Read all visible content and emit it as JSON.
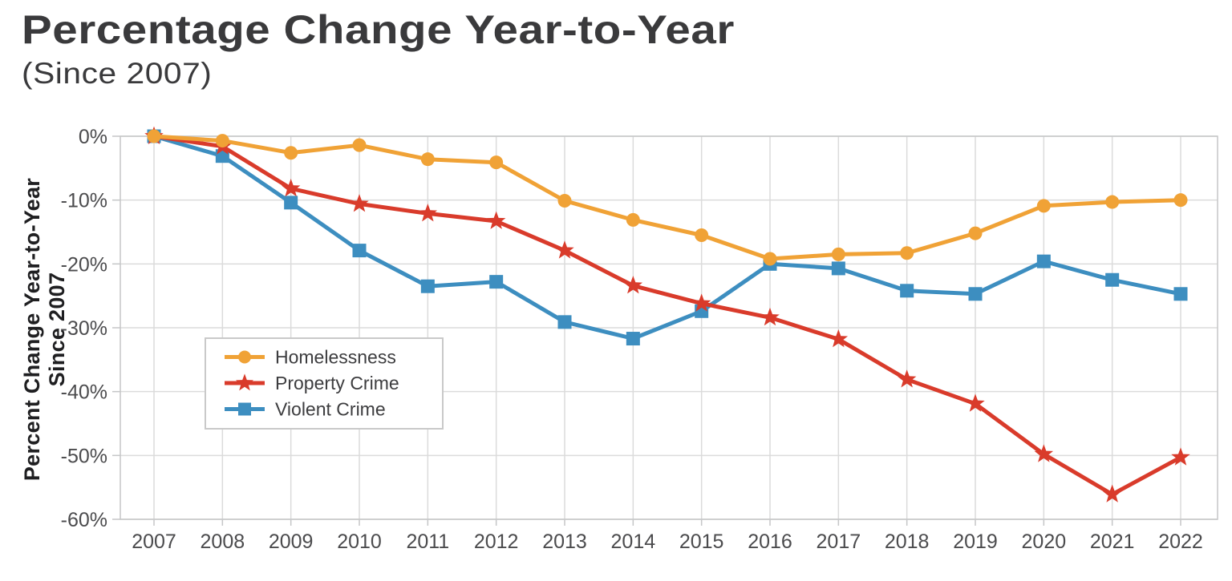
{
  "chart_data": {
    "type": "line",
    "title": "Percentage Change Year-to-Year",
    "subtitle": "(Since 2007)",
    "ylabel_lines": [
      "Percent Change Year-to-Year",
      "Since 2007"
    ],
    "xlabel": "",
    "x": [
      "2007",
      "2008",
      "2009",
      "2010",
      "2011",
      "2012",
      "2013",
      "2014",
      "2015",
      "2016",
      "2017",
      "2018",
      "2019",
      "2020",
      "2021",
      "2022"
    ],
    "ylim": [
      -60,
      0
    ],
    "ytick_values": [
      0,
      -10,
      -20,
      -30,
      -40,
      -50,
      -60
    ],
    "ytick_labels": [
      "0%",
      "-10%",
      "-20%",
      "-30%",
      "-40%",
      "-50%",
      "-60%"
    ],
    "grid": true,
    "legend_position": "inside-upper-left",
    "series": [
      {
        "name": "Homelessness",
        "marker": "circle",
        "color": "#F0A236",
        "values": [
          0,
          -0.7,
          -2.6,
          -1.4,
          -3.6,
          -4.1,
          -10.1,
          -13.1,
          -15.5,
          -19.2,
          -18.5,
          -18.3,
          -15.2,
          -10.9,
          -10.3,
          -10.0
        ]
      },
      {
        "name": "Property Crime",
        "marker": "star",
        "color": "#D93B2B",
        "values": [
          0,
          -1.6,
          -8.2,
          -10.6,
          -12.1,
          -13.3,
          -17.9,
          -23.4,
          -26.2,
          -28.4,
          -31.8,
          -38.1,
          -41.9,
          -49.8,
          -56.1,
          -50.3
        ]
      },
      {
        "name": "Violent Crime",
        "marker": "square",
        "color": "#3D8EC0",
        "values": [
          0,
          -3.1,
          -10.4,
          -17.9,
          -23.5,
          -22.8,
          -29.1,
          -31.7,
          -27.4,
          -20.0,
          -20.7,
          -24.2,
          -24.7,
          -19.6,
          -22.5,
          -24.7
        ]
      }
    ],
    "colors": {
      "grid": "#dbdbdb",
      "frame": "#c5c6c7",
      "tick_text": "#4b4b4d",
      "legend_border": "#c9c9c9",
      "legend_bg": "#ffffff"
    }
  }
}
